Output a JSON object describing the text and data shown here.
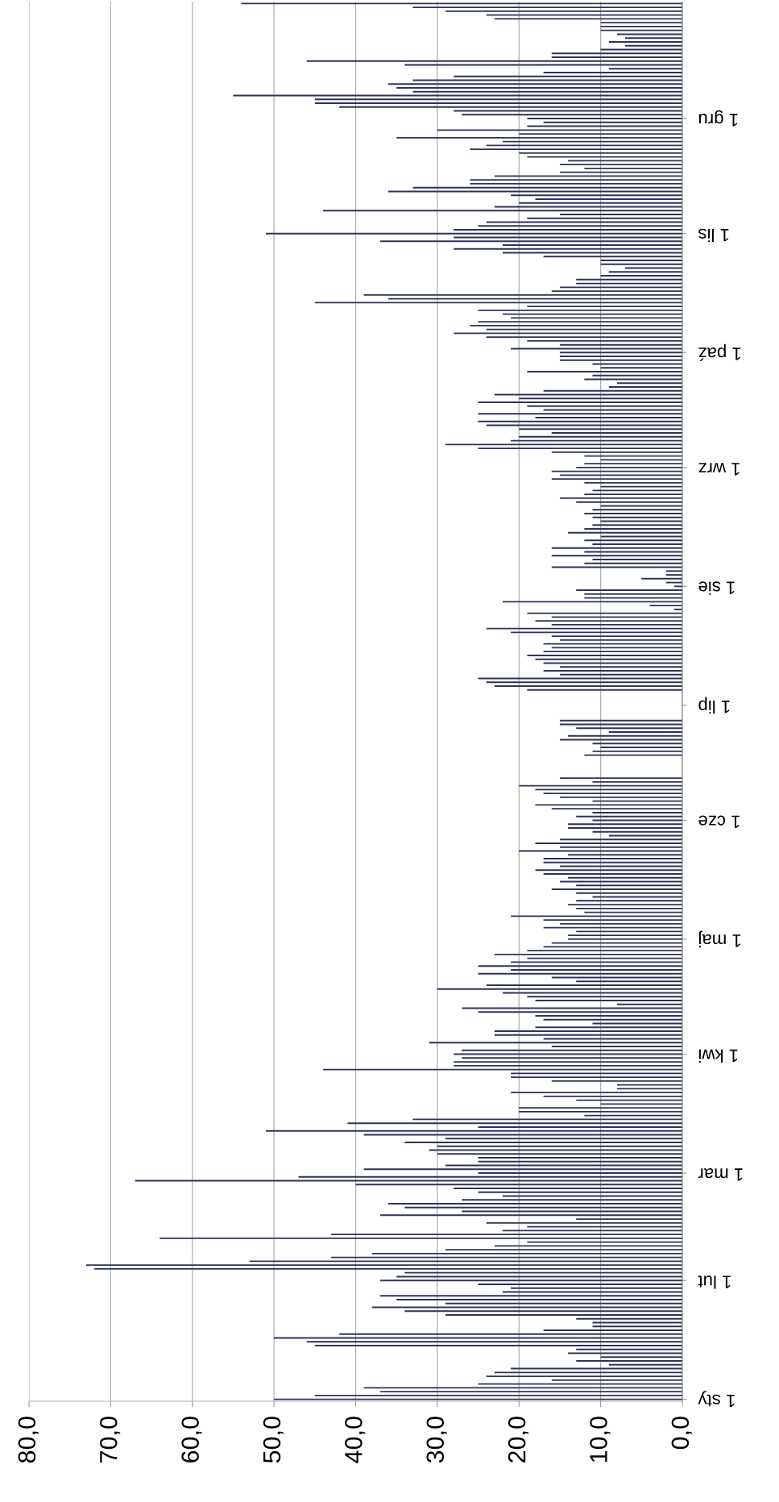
{
  "chart_data": {
    "type": "bar",
    "orientation": "horizontal",
    "categories": [
      null,
      null,
      null,
      null,
      null,
      null,
      null,
      null,
      null,
      null,
      null,
      null,
      null,
      null,
      null,
      null,
      null,
      null,
      null,
      null,
      null,
      null,
      null,
      null,
      null,
      null,
      null,
      null,
      null,
      null,
      "1 gru",
      null,
      null,
      null,
      null,
      null,
      null,
      null,
      null,
      null,
      null,
      null,
      null,
      null,
      null,
      null,
      null,
      null,
      null,
      null,
      null,
      null,
      null,
      null,
      null,
      null,
      null,
      null,
      null,
      null,
      "1 lis",
      null,
      null,
      null,
      null,
      null,
      null,
      null,
      null,
      null,
      null,
      null,
      null,
      null,
      null,
      null,
      null,
      null,
      null,
      null,
      null,
      null,
      null,
      null,
      null,
      null,
      null,
      null,
      null,
      null,
      null,
      "1 paź",
      null,
      null,
      null,
      null,
      null,
      null,
      null,
      null,
      null,
      null,
      null,
      null,
      null,
      null,
      null,
      null,
      null,
      null,
      null,
      null,
      null,
      null,
      null,
      null,
      null,
      null,
      null,
      null,
      null,
      "1 wrz",
      null,
      null,
      null,
      null,
      null,
      null,
      null,
      null,
      null,
      null,
      null,
      null,
      null,
      null,
      null,
      null,
      null,
      null,
      null,
      null,
      null,
      null,
      null,
      null,
      null,
      null,
      null,
      null,
      null,
      null,
      "1 sie",
      null,
      null,
      null,
      null,
      null,
      null,
      null,
      null,
      null,
      null,
      null,
      null,
      null,
      null,
      null,
      null,
      null,
      null,
      null,
      null,
      null,
      null,
      null,
      null,
      null,
      null,
      null,
      null,
      null,
      null,
      "1 lip",
      null,
      null,
      null,
      null,
      null,
      null,
      null,
      null,
      null,
      null,
      null,
      null,
      null,
      null,
      null,
      null,
      null,
      null,
      null,
      null,
      null,
      null,
      null,
      null,
      null,
      null,
      null,
      null,
      null,
      "1 cze",
      null,
      null,
      null,
      null,
      null,
      null,
      null,
      null,
      null,
      null,
      null,
      null,
      null,
      null,
      null,
      null,
      null,
      null,
      null,
      null,
      null,
      null,
      null,
      null,
      null,
      null,
      null,
      null,
      null,
      null,
      "1 maj",
      null,
      null,
      null,
      null,
      null,
      null,
      null,
      null,
      null,
      null,
      null,
      null,
      null,
      null,
      null,
      null,
      null,
      null,
      null,
      null,
      null,
      null,
      null,
      null,
      null,
      null,
      null,
      null,
      null,
      "1 kwi",
      null,
      null,
      null,
      null,
      null,
      null,
      null,
      null,
      null,
      null,
      null,
      null,
      null,
      null,
      null,
      null,
      null,
      null,
      null,
      null,
      null,
      null,
      null,
      null,
      null,
      null,
      null,
      null,
      null,
      null,
      "1 mar",
      null,
      null,
      null,
      null,
      null,
      null,
      null,
      null,
      null,
      null,
      null,
      null,
      null,
      null,
      null,
      null,
      null,
      null,
      null,
      null,
      null,
      null,
      null,
      null,
      null,
      null,
      null,
      "1 lut",
      null,
      null,
      null,
      null,
      null,
      null,
      null,
      null,
      null,
      null,
      null,
      null,
      null,
      null,
      null,
      null,
      null,
      null,
      null,
      null,
      null,
      null,
      null,
      null,
      null,
      null,
      null,
      null,
      null,
      null,
      "1 sty"
    ],
    "values": [
      54,
      33,
      29,
      24,
      23,
      10,
      10,
      10,
      8,
      7,
      9,
      7,
      10,
      16,
      16,
      46,
      34,
      9,
      17,
      28,
      33,
      36,
      35,
      33,
      55,
      45,
      45,
      42,
      28,
      27,
      19,
      17,
      19,
      30,
      20,
      35,
      22,
      24,
      26,
      20,
      19,
      14,
      15,
      12,
      15,
      23,
      26,
      26,
      33,
      36,
      21,
      18,
      20,
      23,
      44,
      15,
      19,
      24,
      25,
      28,
      51,
      28,
      37,
      22,
      28,
      22,
      17,
      10,
      10,
      7,
      9,
      10,
      13,
      13,
      15,
      16,
      39,
      36,
      45,
      19,
      25,
      22,
      21,
      25,
      26,
      24,
      28,
      24,
      19,
      15,
      21,
      15,
      15,
      15,
      11,
      10,
      19,
      11,
      12,
      8,
      9,
      17,
      23,
      20,
      25,
      19,
      17,
      25,
      18,
      25,
      24,
      20,
      16,
      20,
      21,
      29,
      25,
      16,
      12,
      10,
      12,
      13,
      16,
      15,
      16,
      12,
      10,
      11,
      12,
      15,
      13,
      10,
      11,
      12,
      11,
      10,
      11,
      12,
      14,
      10,
      12,
      11,
      16,
      12,
      16,
      11,
      12,
      16,
      2,
      2,
      5,
      2,
      1,
      13,
      12,
      12,
      22,
      4,
      1,
      19,
      16,
      18,
      16,
      24,
      21,
      16,
      15,
      17,
      16,
      17,
      19,
      18,
      17,
      15,
      17,
      15,
      25,
      24,
      23,
      19,
      null,
      null,
      null,
      null,
      null,
      null,
      null,
      15,
      15,
      13,
      9,
      14,
      15,
      11,
      10,
      11,
      12,
      null,
      null,
      null,
      null,
      null,
      15,
      11,
      20,
      18,
      17,
      15,
      11,
      18,
      16,
      11,
      13,
      11,
      14,
      14,
      11,
      9,
      15,
      18,
      15,
      20,
      14,
      17,
      17,
      15,
      18,
      17,
      14,
      15,
      13,
      16,
      13,
      11,
      13,
      14,
      13,
      12,
      21,
      17,
      15,
      17,
      13,
      14,
      14,
      16,
      17,
      19,
      23,
      19,
      21,
      25,
      21,
      25,
      16,
      13,
      24,
      30,
      22,
      19,
      18,
      8,
      27,
      25,
      18,
      17,
      11,
      18,
      23,
      23,
      17,
      31,
      16,
      27,
      28,
      27,
      28,
      28,
      44,
      21,
      21,
      16,
      8,
      8,
      21,
      17,
      13,
      10,
      20,
      20,
      12,
      33,
      41,
      25,
      51,
      39,
      29,
      34,
      30,
      31,
      30,
      25,
      25,
      29,
      39,
      25,
      47,
      67,
      40,
      28,
      25,
      22,
      27,
      36,
      34,
      27,
      37,
      13,
      24,
      19,
      22,
      43,
      64,
      19,
      23,
      29,
      38,
      43,
      53,
      73,
      72,
      34,
      35,
      37,
      25,
      21,
      22,
      37,
      35,
      29,
      38,
      34,
      29,
      13,
      11,
      11,
      17,
      42,
      50,
      46,
      45,
      13,
      14,
      10,
      13,
      9,
      21,
      23,
      24,
      16,
      25,
      39,
      37,
      45,
      50
    ],
    "color": "#2e3356",
    "xlim": [
      80,
      0
    ],
    "xticks": [
      {
        "value": 0,
        "label": "0,0"
      },
      {
        "value": 10,
        "label": "10,0"
      },
      {
        "value": 20,
        "label": "20,0"
      },
      {
        "value": 30,
        "label": "30,0"
      },
      {
        "value": 40,
        "label": "40,0"
      },
      {
        "value": 50,
        "label": "50,0"
      },
      {
        "value": 60,
        "label": "60,0"
      },
      {
        "value": 70,
        "label": "70,0"
      },
      {
        "value": 80,
        "label": "80,0"
      }
    ],
    "grid": "x"
  }
}
